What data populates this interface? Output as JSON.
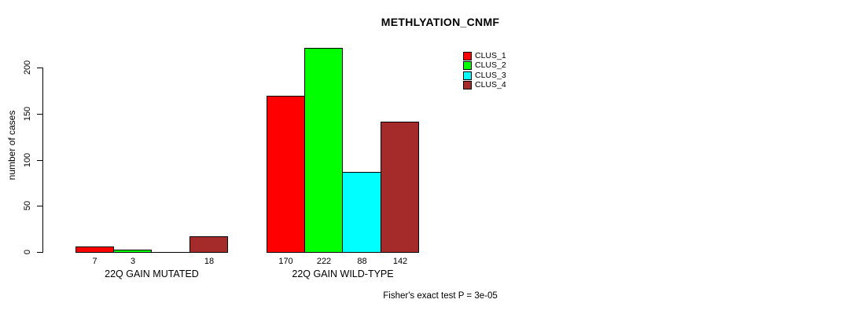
{
  "chart_data": {
    "type": "bar",
    "title": "METHLYATION_CNMF",
    "ylabel": "number of cases",
    "footnote": "Fisher's exact test P = 3e-05",
    "categories": [
      "22Q GAIN MUTATED",
      "22Q GAIN WILD-TYPE"
    ],
    "series": [
      {
        "name": "CLUS_1",
        "color": "#ff0000",
        "values": [
          7,
          170
        ]
      },
      {
        "name": "CLUS_2",
        "color": "#00ff00",
        "values": [
          3,
          222
        ]
      },
      {
        "name": "CLUS_3",
        "color": "#00ffff",
        "values": [
          0,
          88
        ]
      },
      {
        "name": "CLUS_4",
        "color": "#a52a2a",
        "values": [
          18,
          142
        ]
      }
    ],
    "bar_labels": {
      "22Q GAIN MUTATED": [
        "7",
        "3",
        "18"
      ],
      "22Q GAIN WILD-TYPE": [
        "170",
        "222",
        "88",
        "142"
      ]
    },
    "yticks": [
      0,
      50,
      100,
      150,
      200
    ],
    "ylim": [
      0,
      230
    ],
    "grid": false,
    "legend": {
      "position": "top-right",
      "entries": [
        "CLUS_1",
        "CLUS_2",
        "CLUS_3",
        "CLUS_4"
      ]
    },
    "axis_color": "#000000",
    "background": "#ffffff"
  }
}
